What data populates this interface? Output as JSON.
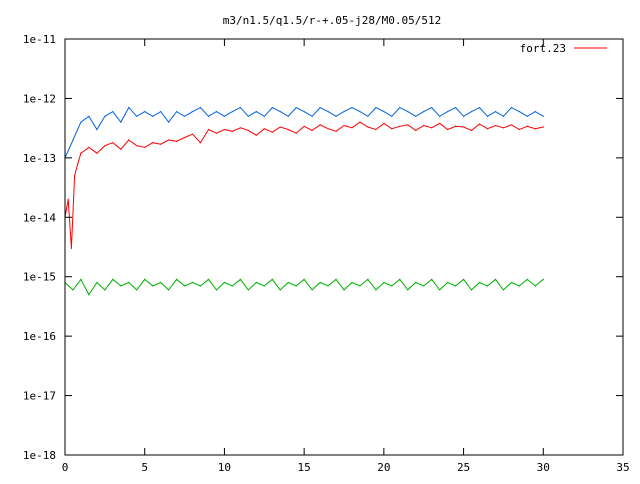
{
  "chart_data": {
    "type": "line",
    "title": "m3/n1.5/q1.5/r-+.05-j28/M0.05/512",
    "xlabel": "",
    "ylabel": "",
    "xlim": [
      0,
      35
    ],
    "ylim": [
      1e-18,
      1e-11
    ],
    "y_scale": "log",
    "x_ticks": [
      0,
      5,
      10,
      15,
      20,
      25,
      30,
      35
    ],
    "x_tick_labels": [
      "0",
      "5",
      "10",
      "15",
      "20",
      "25",
      "30",
      "35"
    ],
    "y_ticks": [
      1e-11,
      1e-12,
      1e-13,
      1e-14,
      1e-15,
      1e-16,
      1e-17,
      1e-18
    ],
    "y_tick_labels": [
      "1e-11",
      "1e-12",
      "1e-13",
      "1e-14",
      "1e-15",
      "1e-16",
      "1e-17",
      "1e-18"
    ],
    "grid": false,
    "legend_position": "top-right",
    "series": [
      {
        "name": "fort.23",
        "color": "#ff0000",
        "in_legend": true,
        "x": [
          0,
          0.2,
          0.4,
          0.6,
          0.8,
          1,
          1.5,
          2,
          2.5,
          3,
          3.5,
          4,
          4.5,
          5,
          5.5,
          6,
          6.5,
          7,
          7.5,
          8,
          8.5,
          9,
          9.5,
          10,
          10.5,
          11,
          11.5,
          12,
          12.5,
          13,
          13.5,
          14,
          14.5,
          15,
          15.5,
          16,
          16.5,
          17,
          17.5,
          18,
          18.5,
          19,
          19.5,
          20,
          20.5,
          21,
          21.5,
          22,
          22.5,
          23,
          23.5,
          24,
          24.5,
          25,
          25.5,
          26,
          26.5,
          27,
          27.5,
          28,
          28.5,
          29,
          29.5,
          30
        ],
        "y": [
          1e-14,
          2e-14,
          3e-15,
          5e-14,
          8e-14,
          1.2e-13,
          1.5e-13,
          1.2e-13,
          1.6e-13,
          1.8e-13,
          1.4e-13,
          2e-13,
          1.6e-13,
          1.5e-13,
          1.8e-13,
          1.7e-13,
          2e-13,
          1.9e-13,
          2.2e-13,
          2.5e-13,
          1.8e-13,
          3e-13,
          2.6e-13,
          3e-13,
          2.8e-13,
          3.2e-13,
          2.9e-13,
          2.4e-13,
          3.1e-13,
          2.7e-13,
          3.3e-13,
          3e-13,
          2.6e-13,
          3.4e-13,
          2.9e-13,
          3.6e-13,
          3.1e-13,
          2.8e-13,
          3.5e-13,
          3.2e-13,
          4e-13,
          3.3e-13,
          3e-13,
          3.8e-13,
          3.1e-13,
          3.4e-13,
          3.6e-13,
          2.9e-13,
          3.5e-13,
          3.2e-13,
          3.8e-13,
          3e-13,
          3.4e-13,
          3.3e-13,
          2.9e-13,
          3.7e-13,
          3.1e-13,
          3.5e-13,
          3.2e-13,
          3.6e-13,
          3e-13,
          3.4e-13,
          3.1e-13,
          3.3e-13
        ]
      },
      {
        "name": "",
        "color": "#0060e0",
        "in_legend": false,
        "x": [
          0,
          0.5,
          1,
          1.5,
          2,
          2.5,
          3,
          3.5,
          4,
          4.5,
          5,
          5.5,
          6,
          6.5,
          7,
          7.5,
          8,
          8.5,
          9,
          9.5,
          10,
          10.5,
          11,
          11.5,
          12,
          12.5,
          13,
          13.5,
          14,
          14.5,
          15,
          15.5,
          16,
          16.5,
          17,
          17.5,
          18,
          18.5,
          19,
          19.5,
          20,
          20.5,
          21,
          21.5,
          22,
          22.5,
          23,
          23.5,
          24,
          24.5,
          25,
          25.5,
          26,
          26.5,
          27,
          27.5,
          28,
          28.5,
          29,
          29.5,
          30
        ],
        "y": [
          1e-13,
          2e-13,
          4e-13,
          5e-13,
          3e-13,
          5e-13,
          6e-13,
          4e-13,
          7e-13,
          5e-13,
          6e-13,
          5e-13,
          6e-13,
          4e-13,
          6e-13,
          5e-13,
          6e-13,
          7e-13,
          5e-13,
          6e-13,
          5e-13,
          6e-13,
          7e-13,
          5e-13,
          6e-13,
          5e-13,
          7e-13,
          6e-13,
          5e-13,
          7e-13,
          6e-13,
          5e-13,
          7e-13,
          6e-13,
          5e-13,
          6e-13,
          7e-13,
          6e-13,
          5e-13,
          7e-13,
          6e-13,
          5e-13,
          7e-13,
          6e-13,
          5e-13,
          6e-13,
          7e-13,
          5e-13,
          6e-13,
          7e-13,
          5e-13,
          6e-13,
          7e-13,
          5e-13,
          6e-13,
          5e-13,
          7e-13,
          6e-13,
          5e-13,
          6e-13,
          5e-13
        ]
      },
      {
        "name": "",
        "color": "#00b000",
        "in_legend": false,
        "x": [
          0,
          0.5,
          1,
          1.5,
          2,
          2.5,
          3,
          3.5,
          4,
          4.5,
          5,
          5.5,
          6,
          6.5,
          7,
          7.5,
          8,
          8.5,
          9,
          9.5,
          10,
          10.5,
          11,
          11.5,
          12,
          12.5,
          13,
          13.5,
          14,
          14.5,
          15,
          15.5,
          16,
          16.5,
          17,
          17.5,
          18,
          18.5,
          19,
          19.5,
          20,
          20.5,
          21,
          21.5,
          22,
          22.5,
          23,
          23.5,
          24,
          24.5,
          25,
          25.5,
          26,
          26.5,
          27,
          27.5,
          28,
          28.5,
          29,
          29.5,
          30
        ],
        "y": [
          8e-16,
          6e-16,
          9e-16,
          5e-16,
          8e-16,
          6e-16,
          9e-16,
          7e-16,
          8e-16,
          6e-16,
          9e-16,
          7e-16,
          8e-16,
          6e-16,
          9e-16,
          7e-16,
          8e-16,
          7e-16,
          9e-16,
          6e-16,
          8e-16,
          7e-16,
          9e-16,
          6e-16,
          8e-16,
          7e-16,
          9e-16,
          6e-16,
          8e-16,
          7e-16,
          9e-16,
          6e-16,
          8e-16,
          7e-16,
          9e-16,
          6e-16,
          8e-16,
          7e-16,
          9e-16,
          6e-16,
          8e-16,
          7e-16,
          9e-16,
          6e-16,
          8e-16,
          7e-16,
          9e-16,
          6e-16,
          8e-16,
          7e-16,
          9e-16,
          6e-16,
          8e-16,
          7e-16,
          9e-16,
          6e-16,
          8e-16,
          7e-16,
          9e-16,
          7e-16,
          9e-16
        ]
      }
    ]
  }
}
